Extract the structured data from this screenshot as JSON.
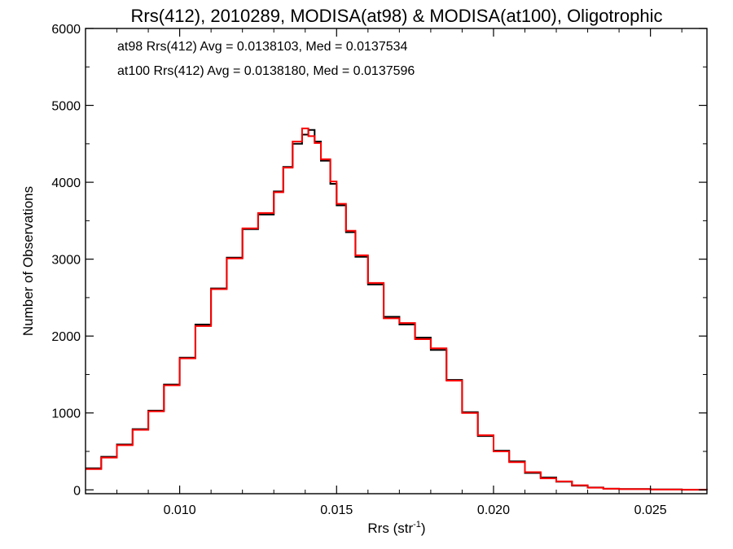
{
  "chart_data": {
    "type": "line",
    "title": "Rrs(412), 2010289, MODISA(at98) & MODISA(at100), Oligotrophic",
    "xlabel": "Rrs (str",
    "xlabel_sup": "-1",
    "xlabel_close": ")",
    "ylabel": "Number of Observations",
    "xlim": [
      0.007,
      0.0268
    ],
    "ylim": [
      -50,
      6000
    ],
    "x_ticks": [
      0.01,
      0.015,
      0.02,
      0.025
    ],
    "x_tick_labels": [
      "0.010",
      "0.015",
      "0.020",
      "0.025"
    ],
    "y_ticks": [
      0,
      1000,
      2000,
      3000,
      4000,
      5000,
      6000
    ],
    "y_tick_labels": [
      "0",
      "1000",
      "2000",
      "3000",
      "4000",
      "5000",
      "6000"
    ],
    "grid": false,
    "step": true,
    "annotations": [
      {
        "text": "at98 Rrs(412) Avg = 0.0138103, Med = 0.0137534",
        "color": "#000000"
      },
      {
        "text": "at100 Rrs(412) Avg = 0.0138180, Med = 0.0137596",
        "color": "#ff0000"
      }
    ],
    "series": [
      {
        "color": "#000000",
        "x": [
          0.007,
          0.0075,
          0.008,
          0.0085,
          0.009,
          0.0095,
          0.01,
          0.0105,
          0.011,
          0.0115,
          0.012,
          0.0125,
          0.013,
          0.0133,
          0.0136,
          0.0139,
          0.0141,
          0.0143,
          0.0145,
          0.0148,
          0.015,
          0.0153,
          0.0156,
          0.016,
          0.0165,
          0.017,
          0.0175,
          0.018,
          0.0185,
          0.019,
          0.0195,
          0.02,
          0.0205,
          0.021,
          0.0215,
          0.022,
          0.0225,
          0.023,
          0.0235,
          0.024,
          0.025,
          0.026,
          0.0268
        ],
        "y": [
          280,
          430,
          590,
          790,
          1030,
          1370,
          1720,
          2150,
          2620,
          3020,
          3390,
          3580,
          3880,
          4200,
          4500,
          4620,
          4680,
          4530,
          4280,
          3980,
          3700,
          3350,
          3030,
          2670,
          2250,
          2150,
          1980,
          1820,
          1430,
          1010,
          700,
          510,
          370,
          220,
          160,
          105,
          55,
          30,
          15,
          10,
          5,
          2,
          0
        ]
      },
      {
        "color": "#ff0000",
        "x": [
          0.007,
          0.0075,
          0.008,
          0.0085,
          0.009,
          0.0095,
          0.01,
          0.0105,
          0.011,
          0.0115,
          0.012,
          0.0125,
          0.013,
          0.0133,
          0.0136,
          0.0139,
          0.0141,
          0.0143,
          0.0145,
          0.0148,
          0.015,
          0.0153,
          0.0156,
          0.016,
          0.0165,
          0.017,
          0.0175,
          0.018,
          0.0185,
          0.019,
          0.0195,
          0.02,
          0.0205,
          0.021,
          0.0215,
          0.022,
          0.0225,
          0.023,
          0.0235,
          0.024,
          0.025,
          0.026,
          0.0268
        ],
        "y": [
          270,
          420,
          580,
          780,
          1020,
          1360,
          1710,
          2130,
          2610,
          3010,
          3400,
          3600,
          3870,
          4190,
          4530,
          4700,
          4600,
          4510,
          4300,
          4010,
          3720,
          3370,
          3050,
          2690,
          2230,
          2170,
          1960,
          1840,
          1420,
          1000,
          710,
          500,
          360,
          230,
          150,
          110,
          60,
          28,
          14,
          9,
          4,
          2,
          0
        ]
      }
    ]
  }
}
